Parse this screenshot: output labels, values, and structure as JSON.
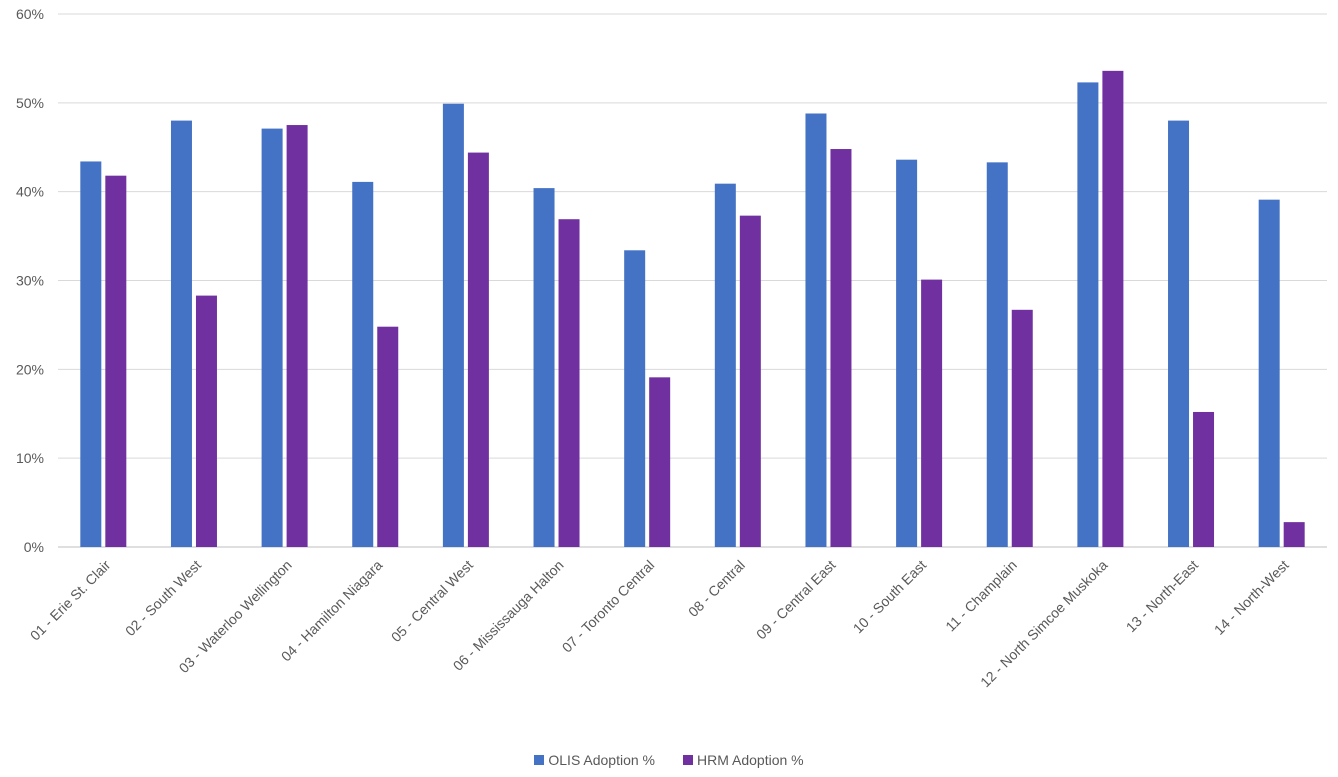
{
  "chart_data": {
    "type": "bar",
    "categories": [
      "01 - Erie St. Clair",
      "02 - South West",
      "03 - Waterloo Wellington",
      "04 - Hamilton Niagara",
      "05 - Central West",
      "06 - Mississauga Halton",
      "07 - Toronto Central",
      "08 - Central",
      "09 - Central East",
      "10 - South East",
      "11 - Champlain",
      "12 - North Simcoe Muskoka",
      "13 - North-East",
      "14 - North-West"
    ],
    "series": [
      {
        "name": "OLIS Adoption %",
        "color": "#4472c4",
        "values": [
          43.4,
          48.0,
          47.1,
          41.1,
          49.9,
          40.4,
          33.4,
          40.9,
          48.8,
          43.6,
          43.3,
          52.3,
          48.0,
          39.1
        ]
      },
      {
        "name": "HRM Adoption %",
        "color": "#7030a0",
        "values": [
          41.8,
          28.3,
          47.5,
          24.8,
          44.4,
          36.9,
          19.1,
          37.3,
          44.8,
          30.1,
          26.7,
          53.6,
          15.2,
          2.8
        ]
      }
    ],
    "ylim": [
      0,
      60
    ],
    "yticks": [
      "0%",
      "10%",
      "20%",
      "30%",
      "40%",
      "50%",
      "60%"
    ],
    "grid": true,
    "legend_position": "bottom"
  }
}
